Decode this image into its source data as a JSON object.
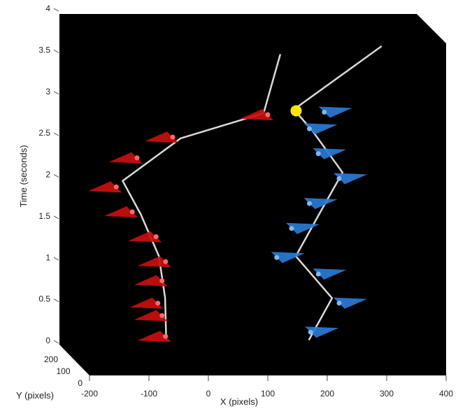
{
  "chart_data": {
    "type": "scatter",
    "projection": "3d",
    "xlabel": "X (pixels)",
    "ylabel": "Y (pixels)",
    "zlabel": "Time (seconds)",
    "xlim": [
      -200,
      400
    ],
    "ylim": [
      0,
      200
    ],
    "zlim": [
      0,
      4
    ],
    "x_ticks": [
      "-200",
      "-100",
      "0",
      "100",
      "200",
      "300",
      "400"
    ],
    "y_ticks": [
      "0",
      "100",
      "200"
    ],
    "z_ticks": [
      "0",
      "0.5",
      "1",
      "1.5",
      "2",
      "2.5",
      "3",
      "3.5",
      "4"
    ],
    "background": "#000000",
    "grid": false,
    "series": [
      {
        "color": "#c80f0f",
        "marker": "triangle",
        "points": [
          {
            "x": -70,
            "y": 20,
            "t": 0.0
          },
          {
            "x": -70,
            "y": 60,
            "t": 0.5
          },
          {
            "x": -80,
            "y": 70,
            "t": 1.0
          },
          {
            "x": -110,
            "y": 80,
            "t": 1.5
          },
          {
            "x": -140,
            "y": 90,
            "t": 1.9
          },
          {
            "x": -40,
            "y": 140,
            "t": 2.4
          },
          {
            "x": 100,
            "y": 150,
            "t": 2.7
          },
          {
            "x": 130,
            "y": 190,
            "t": 3.4
          }
        ],
        "markers": [
          {
            "x": -72,
            "t": 0.05
          },
          {
            "x": -78,
            "t": 0.3
          },
          {
            "x": -85,
            "t": 0.45
          },
          {
            "x": -78,
            "t": 0.72
          },
          {
            "x": -72,
            "t": 0.95
          },
          {
            "x": -88,
            "t": 1.25
          },
          {
            "x": -128,
            "t": 1.55
          },
          {
            "x": -155,
            "t": 1.85
          },
          {
            "x": -120,
            "t": 2.2
          },
          {
            "x": -60,
            "t": 2.45
          },
          {
            "x": 100,
            "t": 2.72
          }
        ]
      },
      {
        "color": "#2a7bd4",
        "marker": "triangle",
        "points": [
          {
            "x": 170,
            "y": 20,
            "t": 0.0
          },
          {
            "x": 210,
            "y": 40,
            "t": 0.5
          },
          {
            "x": 150,
            "y": 60,
            "t": 1.0
          },
          {
            "x": 190,
            "y": 80,
            "t": 1.5
          },
          {
            "x": 230,
            "y": 90,
            "t": 2.0
          },
          {
            "x": 180,
            "y": 110,
            "t": 2.5
          },
          {
            "x": 150,
            "y": 130,
            "t": 2.75
          },
          {
            "x": 300,
            "y": 180,
            "t": 3.5
          }
        ],
        "markers": [
          {
            "x": 172,
            "t": 0.1
          },
          {
            "x": 220,
            "t": 0.45
          },
          {
            "x": 185,
            "t": 0.8
          },
          {
            "x": 115,
            "t": 1.0
          },
          {
            "x": 140,
            "t": 1.35
          },
          {
            "x": 170,
            "t": 1.65
          },
          {
            "x": 220,
            "t": 1.95
          },
          {
            "x": 185,
            "t": 2.25
          },
          {
            "x": 170,
            "t": 2.55
          },
          {
            "x": 195,
            "t": 2.75
          }
        ]
      }
    ],
    "start_marker": {
      "x": 150,
      "y": 140,
      "t": 2.75,
      "color": "#ffe600"
    }
  }
}
